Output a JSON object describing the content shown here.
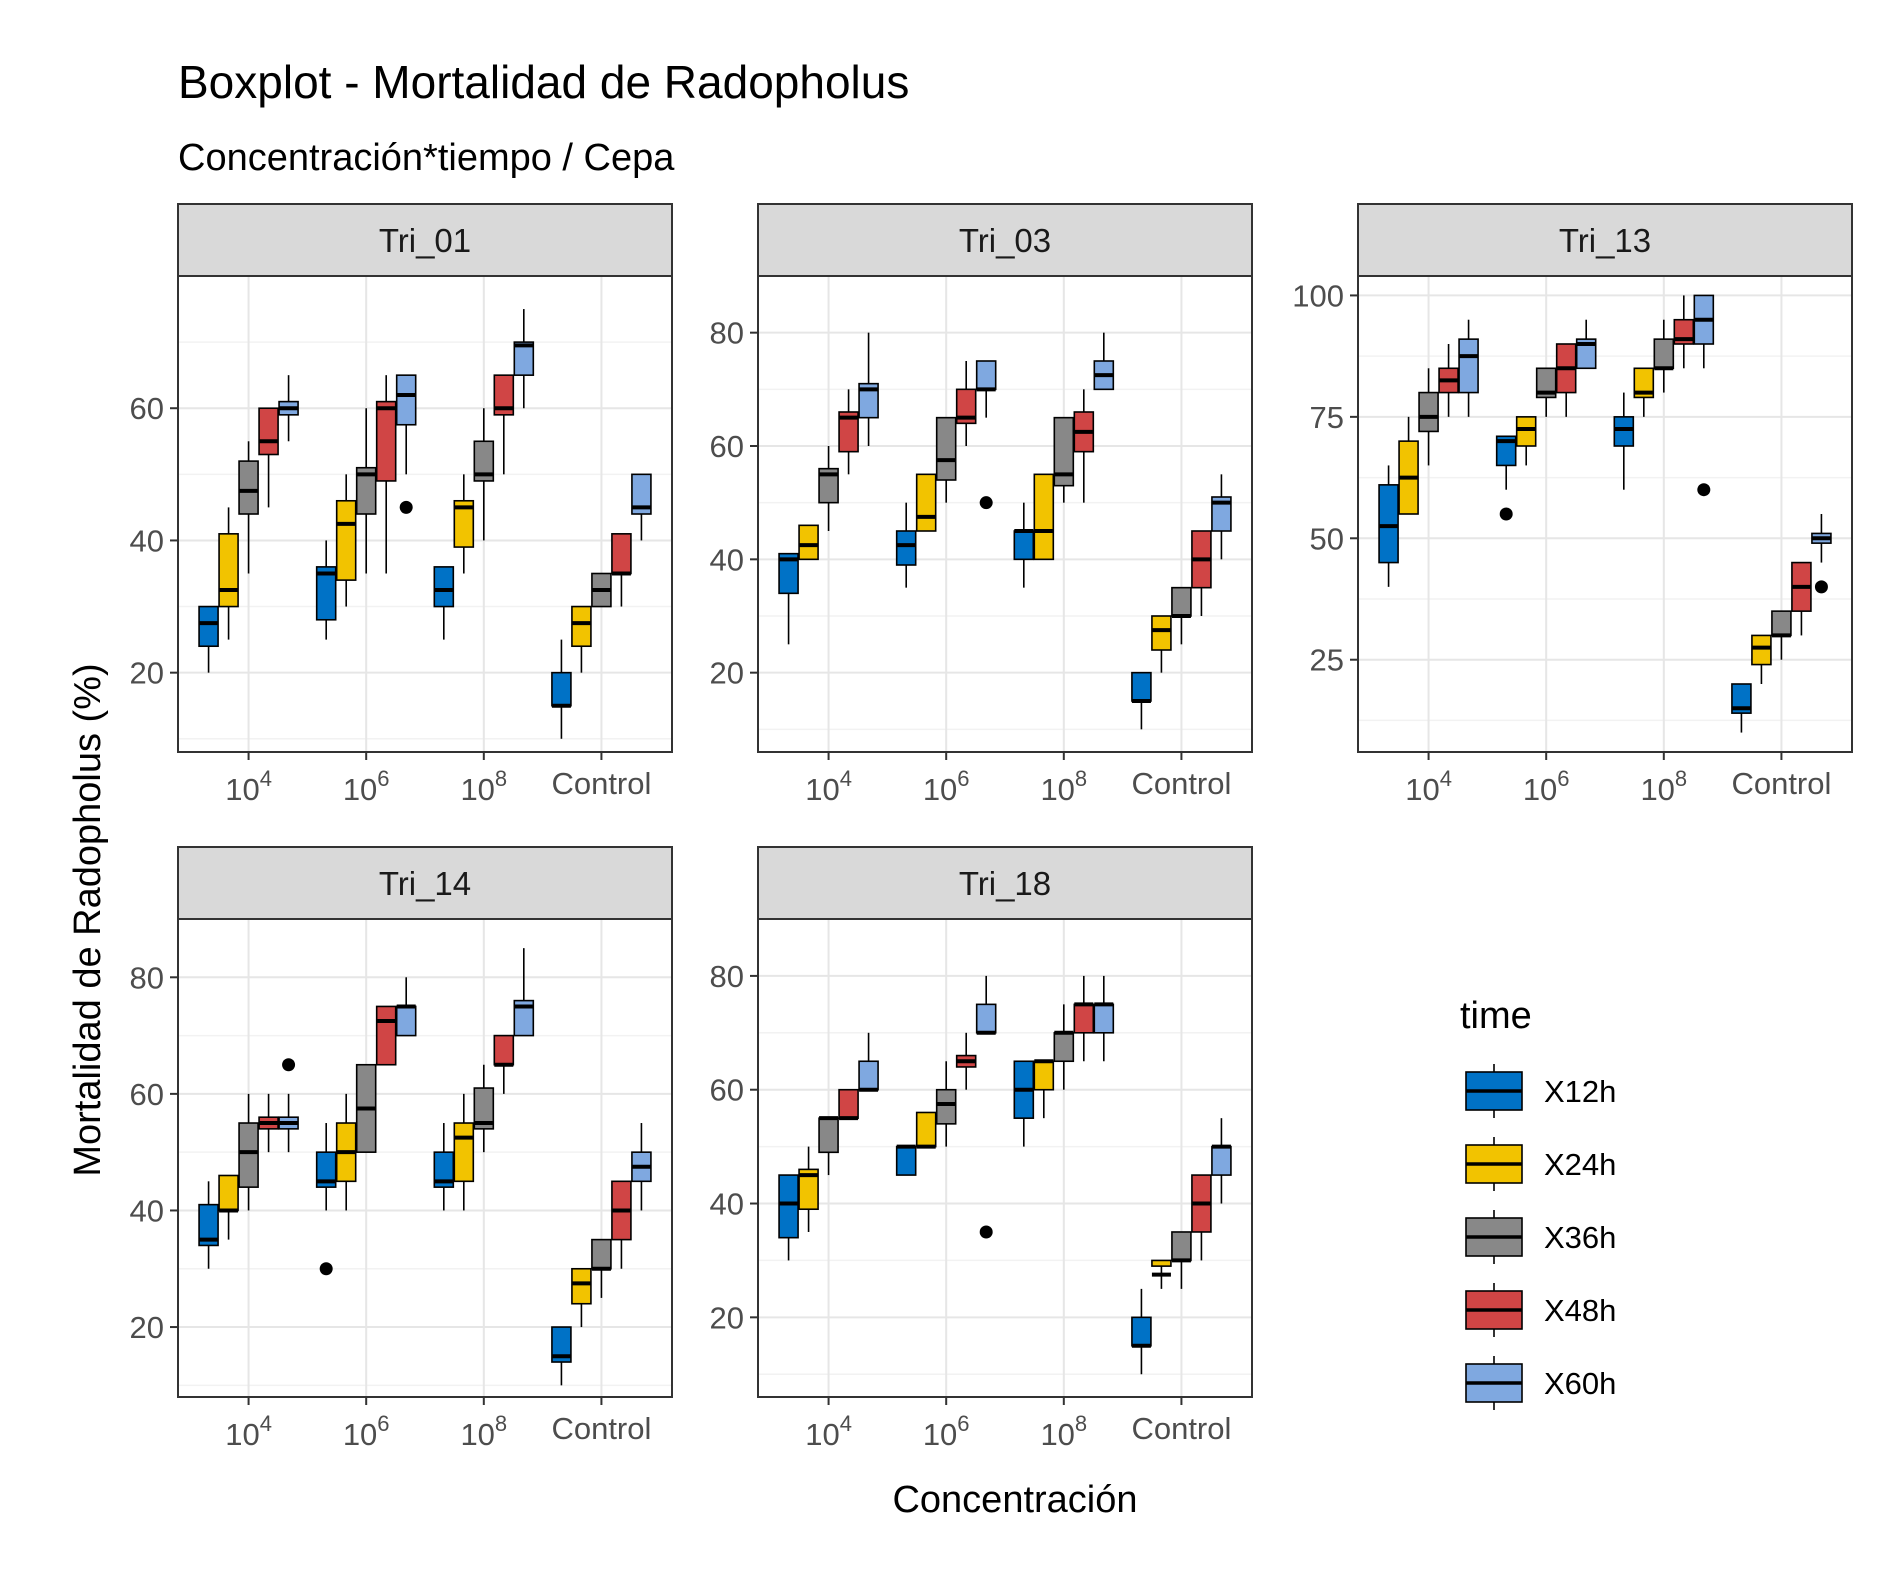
{
  "chart_data": {
    "type": "boxplot",
    "title": "Boxplot - Mortalidad de Radopholus",
    "subtitle": "Concentración*tiempo / Cepa",
    "xlabel": "Concentración",
    "ylabel": "Mortalidad de Radopholus (%)",
    "categories": [
      {
        "base": "10",
        "exp": "4"
      },
      {
        "base": "10",
        "exp": "6"
      },
      {
        "base": "10",
        "exp": "8"
      },
      {
        "base": "Control",
        "exp": ""
      }
    ],
    "legend": {
      "title": "time",
      "position": "right",
      "items": [
        {
          "name": "X12h",
          "color": "#0072C6"
        },
        {
          "name": "X24h",
          "color": "#F2C300"
        },
        {
          "name": "X36h",
          "color": "#888888"
        },
        {
          "name": "X48h",
          "color": "#D04545"
        },
        {
          "name": "X60h",
          "color": "#7FA8E0"
        }
      ]
    },
    "panels": [
      {
        "name": "Tri_01",
        "ylim": [
          8,
          80
        ],
        "yticks": [
          20,
          40,
          60
        ],
        "boxes": [
          [
            [
              20,
              24,
              27.5,
              30,
              30,
              []
            ],
            [
              25,
              30,
              32.5,
              41,
              45,
              []
            ],
            [
              35,
              44,
              47.5,
              52,
              55,
              []
            ],
            [
              45,
              53,
              55,
              60,
              60,
              []
            ],
            [
              55,
              59,
              60,
              61,
              65,
              []
            ]
          ],
          [
            [
              25,
              28,
              35,
              36,
              40,
              []
            ],
            [
              30,
              34,
              42.5,
              46,
              50,
              []
            ],
            [
              35,
              44,
              50,
              51,
              60,
              []
            ],
            [
              35,
              49,
              60,
              61,
              65,
              []
            ],
            [
              50,
              57.5,
              62,
              65,
              65,
              [
                45
              ]
            ]
          ],
          [
            [
              25,
              30,
              32.5,
              36,
              36,
              []
            ],
            [
              35,
              39,
              45,
              46,
              50,
              []
            ],
            [
              40,
              49,
              50,
              55,
              60,
              []
            ],
            [
              50,
              59,
              60,
              65,
              65,
              []
            ],
            [
              60,
              65,
              69.5,
              70,
              75,
              []
            ]
          ],
          [
            [
              10,
              15,
              15,
              20,
              25,
              []
            ],
            [
              20,
              24,
              27.5,
              30,
              30,
              []
            ],
            [
              30,
              30,
              32.5,
              35,
              35,
              []
            ],
            [
              30,
              35,
              35,
              41,
              41,
              []
            ],
            [
              40,
              44,
              45,
              50,
              50,
              []
            ]
          ]
        ]
      },
      {
        "name": "Tri_03",
        "ylim": [
          6,
          90
        ],
        "yticks": [
          20,
          40,
          60,
          80
        ],
        "boxes": [
          [
            [
              25,
              34,
              40,
              41,
              41,
              []
            ],
            [
              40,
              40,
              42.5,
              46,
              46,
              []
            ],
            [
              45,
              50,
              55,
              56,
              60,
              []
            ],
            [
              55,
              59,
              65,
              66,
              70,
              []
            ],
            [
              60,
              65,
              70,
              71,
              80,
              []
            ]
          ],
          [
            [
              35,
              39,
              42.5,
              45,
              50,
              []
            ],
            [
              45,
              45,
              47.5,
              55,
              55,
              []
            ],
            [
              50,
              54,
              57.5,
              65,
              65,
              []
            ],
            [
              60,
              64,
              65,
              70,
              75,
              []
            ],
            [
              65,
              70,
              70,
              75,
              75,
              [
                50
              ]
            ]
          ],
          [
            [
              35,
              40,
              45,
              45,
              50,
              []
            ],
            [
              40,
              40,
              45,
              55,
              55,
              []
            ],
            [
              50,
              53,
              55,
              65,
              65,
              []
            ],
            [
              50,
              59,
              62.5,
              66,
              70,
              []
            ],
            [
              70,
              70,
              72.5,
              75,
              80,
              []
            ]
          ],
          [
            [
              10,
              15,
              15,
              20,
              20,
              []
            ],
            [
              20,
              24,
              27.5,
              30,
              30,
              []
            ],
            [
              25,
              30,
              30,
              35,
              35,
              []
            ],
            [
              30,
              35,
              40,
              45,
              45,
              []
            ],
            [
              40,
              45,
              50,
              51,
              55,
              []
            ]
          ]
        ]
      },
      {
        "name": "Tri_13",
        "ylim": [
          6,
          104
        ],
        "yticks": [
          25,
          50,
          75,
          100
        ],
        "boxes": [
          [
            [
              40,
              45,
              52.5,
              61,
              65,
              []
            ],
            [
              55,
              55,
              62.5,
              70,
              75,
              []
            ],
            [
              65,
              72,
              75,
              80,
              85,
              []
            ],
            [
              75,
              80,
              82.5,
              85,
              90,
              []
            ],
            [
              75,
              80,
              87.5,
              91,
              95,
              []
            ]
          ],
          [
            [
              60,
              65,
              70,
              71,
              71,
              [
                55
              ]
            ],
            [
              65,
              69,
              72.5,
              75,
              75,
              []
            ],
            [
              75,
              79,
              80,
              85,
              85,
              []
            ],
            [
              75,
              80,
              85,
              90,
              90,
              []
            ],
            [
              85,
              85,
              90,
              91,
              95,
              []
            ]
          ],
          [
            [
              60,
              69,
              72.5,
              75,
              80,
              []
            ],
            [
              75,
              79,
              80,
              85,
              85,
              []
            ],
            [
              80,
              85,
              85,
              91,
              95,
              []
            ],
            [
              85,
              90,
              91,
              95,
              100,
              []
            ],
            [
              85,
              90,
              95,
              100,
              100,
              [
                60
              ]
            ]
          ],
          [
            [
              10,
              14,
              15,
              20,
              20,
              []
            ],
            [
              20,
              24,
              27.5,
              30,
              30,
              []
            ],
            [
              25,
              30,
              30,
              35,
              35,
              []
            ],
            [
              30,
              35,
              40,
              45,
              45,
              []
            ],
            [
              45,
              49,
              50,
              51,
              55,
              [
                40
              ]
            ]
          ]
        ]
      },
      {
        "name": "Tri_14",
        "ylim": [
          8,
          90
        ],
        "yticks": [
          20,
          40,
          60,
          80
        ],
        "boxes": [
          [
            [
              30,
              34,
              35,
              41,
              45,
              []
            ],
            [
              35,
              40,
              40,
              46,
              46,
              []
            ],
            [
              40,
              44,
              50,
              55,
              60,
              []
            ],
            [
              50,
              54,
              55,
              56,
              60,
              []
            ],
            [
              50,
              54,
              55,
              56,
              60,
              [
                65
              ]
            ]
          ],
          [
            [
              40,
              44,
              45,
              50,
              55,
              [
                30
              ]
            ],
            [
              40,
              45,
              50,
              55,
              60,
              []
            ],
            [
              50,
              50,
              57.5,
              65,
              65,
              []
            ],
            [
              65,
              65,
              72.5,
              75,
              75,
              []
            ],
            [
              70,
              70,
              75,
              75,
              80,
              []
            ]
          ],
          [
            [
              40,
              44,
              45,
              50,
              55,
              []
            ],
            [
              40,
              45,
              52.5,
              55,
              60,
              []
            ],
            [
              50,
              54,
              55,
              61,
              65,
              []
            ],
            [
              60,
              65,
              65,
              70,
              70,
              []
            ],
            [
              70,
              70,
              75,
              76,
              85,
              []
            ]
          ],
          [
            [
              10,
              14,
              15,
              20,
              20,
              []
            ],
            [
              20,
              24,
              27.5,
              30,
              30,
              []
            ],
            [
              25,
              30,
              30,
              35,
              35,
              []
            ],
            [
              30,
              35,
              40,
              45,
              45,
              []
            ],
            [
              40,
              45,
              47.5,
              50,
              55,
              []
            ]
          ]
        ]
      },
      {
        "name": "Tri_18",
        "ylim": [
          6,
          90
        ],
        "yticks": [
          20,
          40,
          60,
          80
        ],
        "boxes": [
          [
            [
              30,
              34,
              40,
              45,
              45,
              []
            ],
            [
              35,
              39,
              45,
              46,
              50,
              []
            ],
            [
              45,
              49,
              55,
              55,
              55,
              []
            ],
            [
              55,
              55,
              55,
              60,
              60,
              []
            ],
            [
              60,
              60,
              60,
              65,
              70,
              []
            ]
          ],
          [
            [
              45,
              45,
              50,
              50,
              50,
              []
            ],
            [
              50,
              50,
              50,
              56,
              56,
              []
            ],
            [
              50,
              54,
              57.5,
              60,
              65,
              []
            ],
            [
              60,
              64,
              65,
              66,
              70,
              []
            ],
            [
              70,
              70,
              70,
              75,
              80,
              [
                35
              ]
            ]
          ],
          [
            [
              50,
              55,
              60,
              65,
              65,
              []
            ],
            [
              55,
              60,
              65,
              65,
              65,
              []
            ],
            [
              60,
              65,
              70,
              70,
              75,
              []
            ],
            [
              65,
              70,
              75,
              75,
              80,
              []
            ],
            [
              65,
              70,
              75,
              75,
              80,
              []
            ]
          ],
          [
            [
              10,
              15,
              15,
              20,
              25,
              []
            ],
            [
              25,
              29,
              27.5,
              30,
              30,
              []
            ],
            [
              25,
              30,
              30,
              35,
              35,
              []
            ],
            [
              30,
              35,
              40,
              45,
              45,
              []
            ],
            [
              40,
              45,
              50,
              50,
              55,
              []
            ]
          ]
        ]
      }
    ]
  }
}
